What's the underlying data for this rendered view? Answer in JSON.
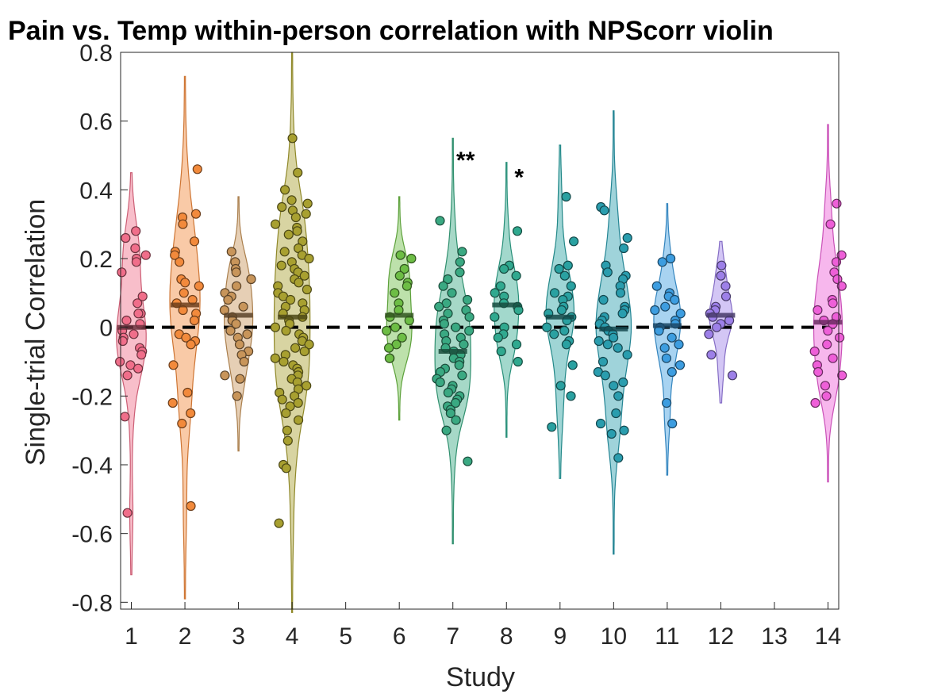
{
  "chart_data": {
    "type": "violin",
    "title": "Pain vs. Temp within-person correlation with NPScorr violin",
    "xlabel": "Study",
    "ylabel": "Single-trial Correlation",
    "ylim": [
      -0.82,
      0.8
    ],
    "yticks": [
      -0.8,
      -0.6,
      -0.4,
      -0.2,
      0,
      0.2,
      0.4,
      0.6,
      0.8
    ],
    "ytick_labels": [
      "-0.8",
      "-0.6",
      "-0.4",
      "-0.2",
      "0",
      "0.2",
      "0.4",
      "0.6",
      "0.8"
    ],
    "xlim": [
      0.8,
      14.2
    ],
    "categories": [
      1,
      2,
      3,
      4,
      5,
      6,
      7,
      8,
      9,
      10,
      11,
      12,
      13,
      14
    ],
    "category_labels": [
      "1",
      "2",
      "3",
      "4",
      "5",
      "6",
      "7",
      "8",
      "9",
      "10",
      "11",
      "12",
      "13",
      "14"
    ],
    "reference_line": {
      "y": 0,
      "style": "dashed"
    },
    "grid": false,
    "series": [
      {
        "study": 1,
        "color": "#f06e8a",
        "median": 0.0,
        "range": [
          -0.72,
          0.45
        ],
        "points": [
          0.28,
          0.26,
          0.23,
          0.21,
          0.2,
          0.19,
          0.16,
          0.09,
          0.07,
          0.04,
          0.04,
          0.02,
          0.01,
          -0.01,
          -0.02,
          -0.03,
          -0.04,
          -0.06,
          -0.07,
          -0.08,
          -0.1,
          -0.11,
          -0.12,
          -0.14,
          -0.26,
          -0.54
        ]
      },
      {
        "study": 2,
        "color": "#f28a3c",
        "median": 0.065,
        "range": [
          -0.79,
          0.73
        ],
        "points": [
          0.46,
          0.33,
          0.32,
          0.3,
          0.25,
          0.22,
          0.21,
          0.19,
          0.14,
          0.13,
          0.12,
          0.1,
          0.08,
          0.07,
          0.05,
          0.04,
          0.02,
          -0.02,
          -0.03,
          -0.04,
          -0.05,
          -0.11,
          -0.19,
          -0.22,
          -0.25,
          -0.28,
          -0.52
        ]
      },
      {
        "study": 3,
        "color": "#c8955a",
        "median": 0.035,
        "range": [
          -0.36,
          0.38
        ],
        "points": [
          0.22,
          0.19,
          0.17,
          0.16,
          0.14,
          0.12,
          0.1,
          0.09,
          0.08,
          0.06,
          0.05,
          0.03,
          0.02,
          0.01,
          -0.01,
          -0.02,
          -0.03,
          -0.05,
          -0.07,
          -0.08,
          -0.1,
          -0.14,
          -0.15,
          -0.2
        ]
      },
      {
        "study": 4,
        "color": "#a8a030",
        "median": 0.03,
        "range": [
          -0.83,
          0.8
        ],
        "points": [
          0.55,
          0.45,
          0.4,
          0.37,
          0.36,
          0.35,
          0.34,
          0.33,
          0.32,
          0.3,
          0.29,
          0.28,
          0.27,
          0.25,
          0.23,
          0.22,
          0.21,
          0.2,
          0.19,
          0.18,
          0.17,
          0.16,
          0.15,
          0.14,
          0.13,
          0.12,
          0.11,
          0.1,
          0.09,
          0.08,
          0.07,
          0.06,
          0.05,
          0.04,
          0.03,
          0.02,
          0.01,
          0.0,
          -0.01,
          -0.02,
          -0.03,
          -0.04,
          -0.05,
          -0.06,
          -0.07,
          -0.08,
          -0.09,
          -0.1,
          -0.11,
          -0.12,
          -0.13,
          -0.14,
          -0.15,
          -0.16,
          -0.17,
          -0.18,
          -0.19,
          -0.2,
          -0.21,
          -0.22,
          -0.23,
          -0.25,
          -0.27,
          -0.3,
          -0.33,
          -0.4,
          -0.41,
          -0.57
        ]
      },
      {
        "study": 6,
        "color": "#6dbd45",
        "median": 0.035,
        "range": [
          -0.27,
          0.38
        ],
        "points": [
          0.21,
          0.2,
          0.17,
          0.15,
          0.13,
          0.12,
          0.1,
          0.07,
          0.05,
          0.03,
          0.02,
          0.0,
          -0.01,
          -0.03,
          -0.05,
          -0.06,
          -0.09,
          -0.09
        ]
      },
      {
        "study": 7,
        "color": "#3aa982",
        "median": -0.07,
        "range": [
          -0.63,
          0.55
        ],
        "points": [
          0.31,
          0.22,
          0.19,
          0.16,
          0.14,
          0.12,
          0.1,
          0.08,
          0.07,
          0.06,
          0.05,
          0.04,
          0.03,
          0.02,
          0.01,
          0.0,
          -0.01,
          -0.02,
          -0.03,
          -0.04,
          -0.05,
          -0.06,
          -0.07,
          -0.08,
          -0.09,
          -0.1,
          -0.11,
          -0.12,
          -0.13,
          -0.14,
          -0.15,
          -0.16,
          -0.17,
          -0.18,
          -0.19,
          -0.2,
          -0.21,
          -0.22,
          -0.23,
          -0.24,
          -0.25,
          -0.27,
          -0.3,
          -0.39
        ]
      },
      {
        "study": 8,
        "color": "#30a98f",
        "median": 0.065,
        "range": [
          -0.32,
          0.48
        ],
        "points": [
          0.28,
          0.18,
          0.17,
          0.15,
          0.12,
          0.1,
          0.09,
          0.07,
          0.06,
          0.05,
          0.03,
          0.0,
          -0.02,
          -0.03,
          -0.05,
          -0.07,
          -0.1
        ]
      },
      {
        "study": 9,
        "color": "#2aa1a1",
        "median": 0.03,
        "range": [
          -0.44,
          0.53
        ],
        "points": [
          0.38,
          0.25,
          0.18,
          0.17,
          0.15,
          0.12,
          0.1,
          0.09,
          0.08,
          0.06,
          0.05,
          0.04,
          0.03,
          0.02,
          0.0,
          -0.01,
          -0.02,
          -0.04,
          -0.05,
          -0.11,
          -0.17,
          -0.2,
          -0.29
        ]
      },
      {
        "study": 10,
        "color": "#2a9dae",
        "median": -0.005,
        "range": [
          -0.66,
          0.63
        ],
        "points": [
          0.35,
          0.34,
          0.26,
          0.23,
          0.18,
          0.16,
          0.15,
          0.14,
          0.12,
          0.1,
          0.08,
          0.06,
          0.05,
          0.04,
          0.03,
          0.02,
          0.01,
          0.0,
          -0.01,
          -0.02,
          -0.03,
          -0.04,
          -0.05,
          -0.06,
          -0.08,
          -0.1,
          -0.13,
          -0.14,
          -0.16,
          -0.17,
          -0.2,
          -0.25,
          -0.28,
          -0.3,
          -0.31,
          -0.38
        ]
      },
      {
        "study": 11,
        "color": "#3d9de0",
        "median": 0.005,
        "range": [
          -0.43,
          0.36
        ],
        "points": [
          0.2,
          0.19,
          0.12,
          0.1,
          0.09,
          0.08,
          0.06,
          0.05,
          0.04,
          0.02,
          0.01,
          0.0,
          -0.01,
          -0.03,
          -0.05,
          -0.06,
          -0.09,
          -0.11,
          -0.13,
          -0.22,
          -0.28
        ]
      },
      {
        "study": 12,
        "color": "#9d80e8",
        "median": 0.035,
        "range": [
          -0.22,
          0.25
        ],
        "points": [
          0.18,
          0.15,
          0.12,
          0.09,
          0.06,
          0.05,
          0.04,
          0.03,
          0.02,
          0.01,
          0.0,
          -0.02,
          -0.08,
          -0.14
        ]
      },
      {
        "study": 14,
        "color": "#ee5fd8",
        "median": 0.015,
        "range": [
          -0.45,
          0.59
        ],
        "points": [
          0.36,
          0.3,
          0.21,
          0.19,
          0.16,
          0.14,
          0.12,
          0.08,
          0.07,
          0.05,
          0.03,
          0.02,
          0.01,
          -0.01,
          -0.03,
          -0.05,
          -0.07,
          -0.09,
          -0.11,
          -0.13,
          -0.14,
          -0.17,
          -0.2,
          -0.22
        ]
      }
    ],
    "annotations": [
      {
        "text": "**",
        "study": 7,
        "y": 0.5
      },
      {
        "text": "*",
        "study": 8,
        "y": 0.45
      }
    ]
  }
}
